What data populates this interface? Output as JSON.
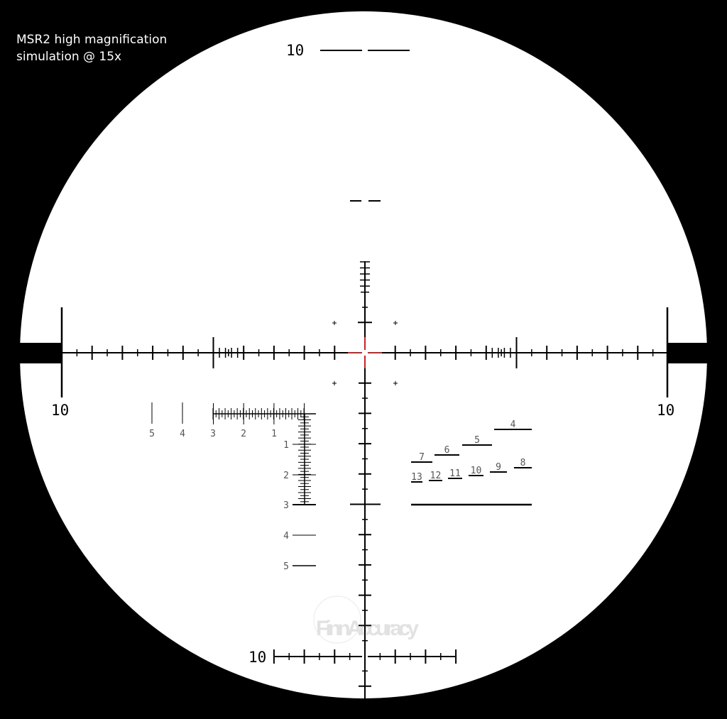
{
  "caption": {
    "line1": "MSR2 high magnification",
    "line2": "simulation @ 15x"
  },
  "reticle": {
    "center_color": "#cc2222",
    "line_color": "#000000",
    "field_color": "#ffffff",
    "labels": {
      "top": "10",
      "left": "10",
      "right": "10",
      "bottom": "10"
    },
    "left_scale_h": [
      "5",
      "4",
      "3",
      "2",
      "1"
    ],
    "left_scale_v": [
      "1",
      "2",
      "3",
      "4",
      "5"
    ],
    "range_bars": [
      "4",
      "5",
      "6",
      "7",
      "8",
      "9",
      "10",
      "11",
      "12",
      "13"
    ]
  },
  "watermark": "FinnAccuracy"
}
